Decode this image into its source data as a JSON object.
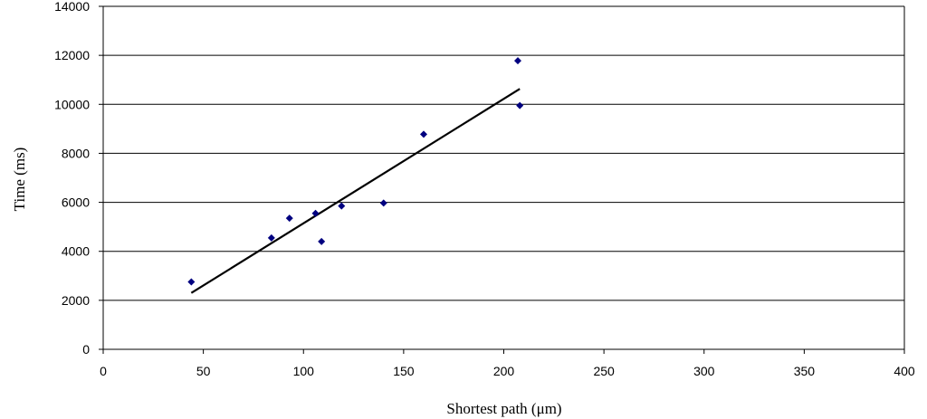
{
  "chart_data": {
    "type": "scatter",
    "xlabel": "Shortest path (μm)",
    "ylabel": "Time (ms)",
    "xlim": [
      0,
      400
    ],
    "ylim": [
      0,
      14000
    ],
    "xticks": [
      0,
      50,
      100,
      150,
      200,
      250,
      300,
      350,
      400
    ],
    "yticks": [
      0,
      2000,
      4000,
      6000,
      8000,
      10000,
      12000,
      14000
    ],
    "grid": "horizontal",
    "legend": "none",
    "marker_color": "#000080",
    "line_color": "#000000",
    "points": [
      {
        "x": 44,
        "y": 2750
      },
      {
        "x": 84,
        "y": 4550
      },
      {
        "x": 93,
        "y": 5350
      },
      {
        "x": 106,
        "y": 5550
      },
      {
        "x": 109,
        "y": 4400
      },
      {
        "x": 119,
        "y": 5850
      },
      {
        "x": 140,
        "y": 5970
      },
      {
        "x": 160,
        "y": 8780
      },
      {
        "x": 207,
        "y": 11780
      },
      {
        "x": 208,
        "y": 9950
      }
    ],
    "trendline": {
      "x": [
        44,
        208
      ],
      "y": [
        2300,
        10630
      ]
    }
  }
}
